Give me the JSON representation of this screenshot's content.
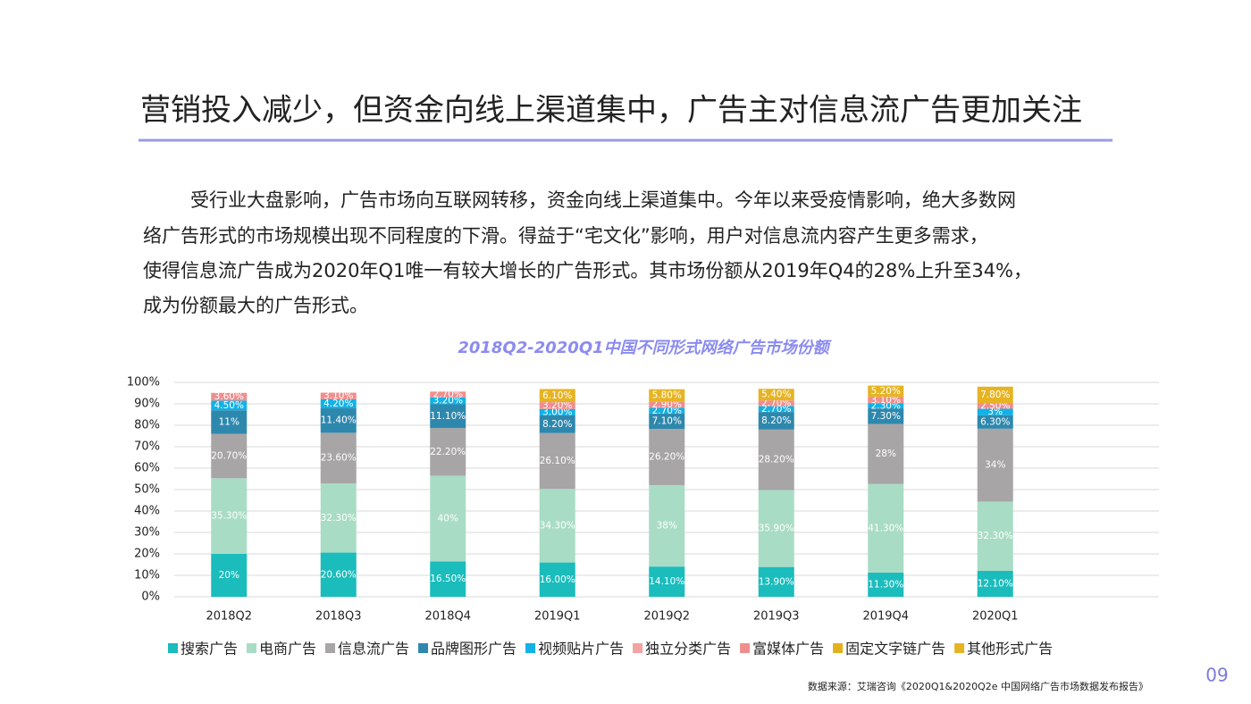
{
  "slide": {
    "title": "营销投入减少，但资金向线上渠道集中，广告主对信息流广告更加关注",
    "paragraph": [
      "受行业大盘影响，广告市场向互联网转移，资金向线上渠道集中。今年以来受疫情影响，绝大多数网",
      "络广告形式的市场规模出现不同程度的下滑。得益于“宅文化”影响，用户对信息流内容产生更多需求，",
      "使得信息流广告成为2020年Q1唯一有较大增长的广告形式。其市场份额从2019年Q4的28%上升至34%，",
      "成为份额最大的广告形式。"
    ],
    "source": "数据来源：艾瑞咨询《2020Q1&2020Q2e 中国网络广告市场数据发布报告》",
    "page": "09"
  },
  "chart_data": {
    "type": "stacked-bar",
    "title": "2018Q2-2020Q1中国不同形式网络广告市场份额",
    "categories": [
      "2018Q2",
      "2018Q3",
      "2018Q4",
      "2019Q1",
      "2019Q2",
      "2019Q3",
      "2019Q4",
      "2020Q1"
    ],
    "series": [
      {
        "name": "搜索广告",
        "color": "#1bbcbc",
        "values": [
          20,
          20.6,
          16.5,
          16,
          14.1,
          13.9,
          11.3,
          12.1
        ],
        "value_labels": [
          "20%",
          "20.60%",
          "16.50%",
          "16.00%",
          "14.10%",
          "13.90%",
          "11.30%",
          "12.10%"
        ]
      },
      {
        "name": "电商广告",
        "color": "#a9dcc5",
        "values": [
          35.3,
          32.3,
          40,
          34.3,
          38,
          35.9,
          41.3,
          32.3
        ],
        "value_labels": [
          "35.30%",
          "32.30%",
          "40%",
          "34.30%",
          "38%",
          "35.90%",
          "41.30%",
          "32.30%"
        ]
      },
      {
        "name": "信息流广告",
        "color": "#a7a5a6",
        "values": [
          20.7,
          23.6,
          22.2,
          26.1,
          26.2,
          28.2,
          28,
          34
        ],
        "value_labels": [
          "20.70%",
          "23.60%",
          "22.20%",
          "26.10%",
          "26.20%",
          "28.20%",
          "28%",
          "34%"
        ]
      },
      {
        "name": "品牌图形广告",
        "color": "#2e88ad",
        "values": [
          11,
          11.4,
          11.1,
          8.2,
          7.1,
          8.2,
          7.3,
          6.3
        ],
        "value_labels": [
          "11%",
          "11.40%",
          "11.10%",
          "8.20%",
          "7.10%",
          "8.20%",
          "7.30%",
          "6.30%"
        ]
      },
      {
        "name": "视频贴片广告",
        "color": "#12b2e6",
        "values": [
          4.5,
          4.2,
          3.2,
          3,
          2.7,
          2.7,
          2.3,
          3
        ],
        "value_labels": [
          "4.50%",
          "4.20%",
          "3.20%",
          "3.00%",
          "2.70%",
          "2.70%",
          "2.30%",
          "3%"
        ]
      },
      {
        "name": "独立分类广告",
        "color": "#f2a3a3",
        "values": [
          null,
          null,
          null,
          null,
          null,
          null,
          null,
          null
        ]
      },
      {
        "name": "富媒体广告",
        "color": "#f08e8e",
        "values": [
          3.6,
          3.1,
          2.7,
          3.2,
          2.9,
          2.7,
          3.1,
          2.5
        ],
        "value_labels": [
          "3.60%",
          "3.10%",
          "2.70%",
          "3.20%",
          "2.90%",
          "2.70%",
          "3.10%",
          "2.50%"
        ]
      },
      {
        "name": "固定文字链广告",
        "color": "#e2b11e",
        "values": [
          null,
          null,
          null,
          null,
          null,
          null,
          null,
          null
        ]
      },
      {
        "name": "其他形式广告",
        "color": "#e6b422",
        "values": [
          null,
          null,
          null,
          6.1,
          5.8,
          5.4,
          5.2,
          7.8
        ],
        "value_labels": [
          null,
          null,
          null,
          "6.10%",
          "5.80%",
          "5.40%",
          "5.20%",
          "7.80%"
        ]
      }
    ],
    "ylim": [
      0,
      100
    ],
    "yticks": [
      {
        "value": 0,
        "label": "0%"
      },
      {
        "value": 10,
        "label": "10%"
      },
      {
        "value": 20,
        "label": "20%"
      },
      {
        "value": 30,
        "label": "30%"
      },
      {
        "value": 40,
        "label": "40%"
      },
      {
        "value": 50,
        "label": "50%"
      },
      {
        "value": 60,
        "label": "60%"
      },
      {
        "value": 70,
        "label": "70%"
      },
      {
        "value": 80,
        "label": "80%"
      },
      {
        "value": 90,
        "label": "90%"
      },
      {
        "value": 100,
        "label": "100%"
      }
    ],
    "grid": true,
    "legend": "bottom"
  }
}
